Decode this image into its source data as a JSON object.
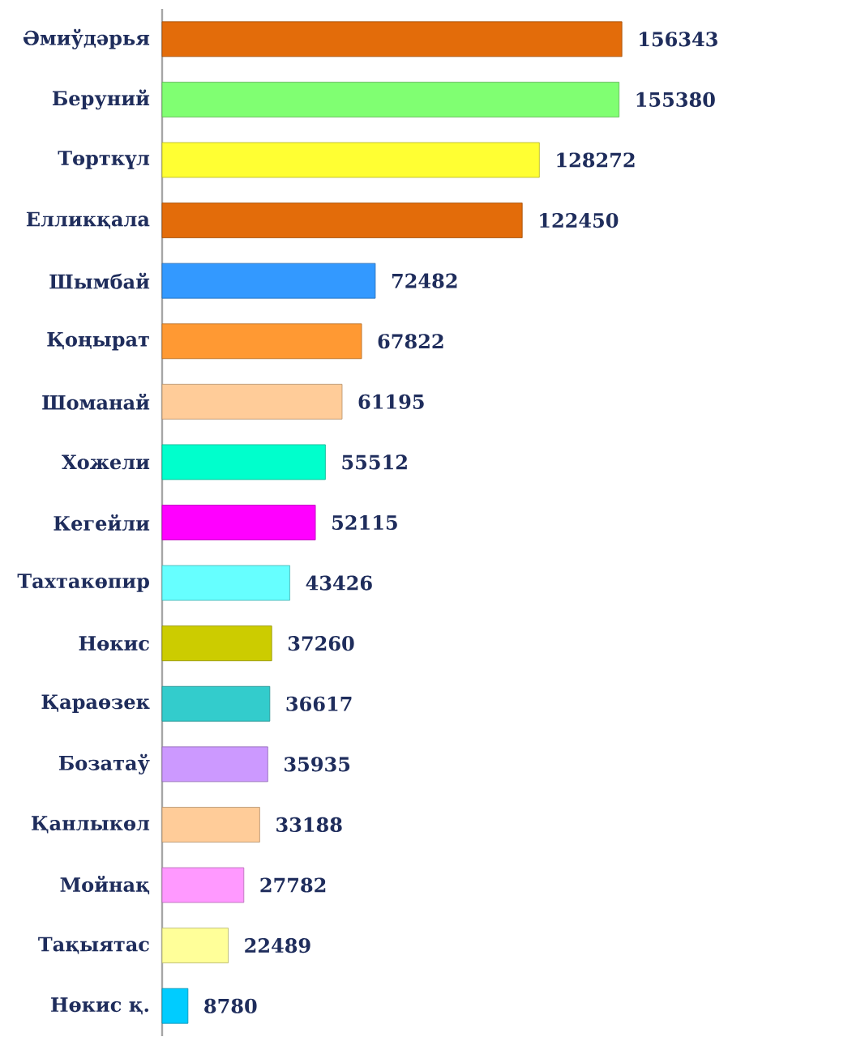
{
  "chart_data": {
    "type": "bar",
    "orientation": "horizontal",
    "data_labels": true,
    "categories": [
      "Әмиўдәрья",
      "Беруний",
      "Төрткүл",
      "Елликқала",
      "Шымбай",
      "Қоңырат",
      "Шоманай",
      "Хожели",
      "Кегейли",
      "Тахтакөпир",
      "Нөкис",
      "Қараөзек",
      "Бозатаў",
      "Қанлыкөл",
      "Мойнақ",
      "Тақыятас",
      "Нөкис қ."
    ],
    "values": [
      156343,
      155380,
      128272,
      122450,
      72482,
      67822,
      61195,
      55512,
      52115,
      43426,
      37260,
      36617,
      35935,
      33188,
      27782,
      22489,
      8780
    ],
    "colors": [
      "#e36c0a",
      "#80ff72",
      "#ffff33",
      "#e36c0a",
      "#3399ff",
      "#ff9933",
      "#ffcc99",
      "#00ffcc",
      "#ff00ff",
      "#66ffff",
      "#cccc00",
      "#33cccc",
      "#cc99ff",
      "#ffcc99",
      "#ff99ff",
      "#ffff99",
      "#00ccff"
    ]
  }
}
